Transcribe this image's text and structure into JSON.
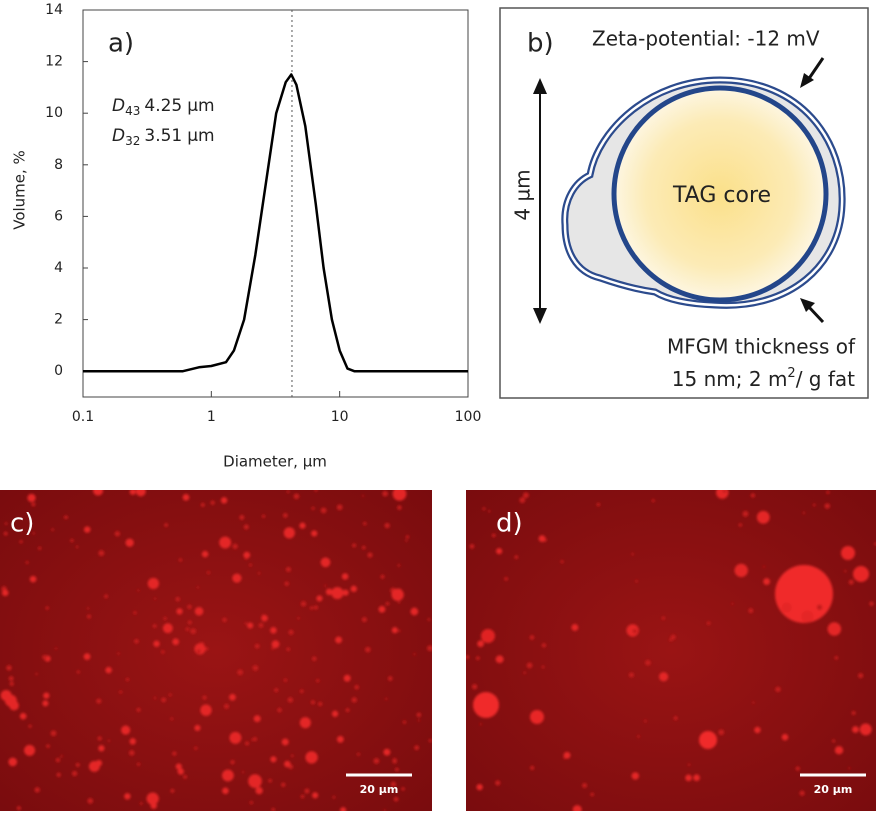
{
  "chart_data": {
    "type": "line",
    "panel_label": "a)",
    "x_label": "Diameter, µm",
    "y_label": "Volume, %",
    "x": [
      0.1,
      0.6,
      0.8,
      1,
      1.3,
      1.5,
      1.8,
      2.2,
      2.7,
      3.2,
      3.8,
      4.2,
      4.6,
      5.4,
      6.5,
      7.5,
      8.7,
      10,
      11.5,
      13,
      100
    ],
    "values": [
      0,
      0,
      0.15,
      0.2,
      0.35,
      0.8,
      2,
      4.5,
      7.5,
      10,
      11.2,
      11.5,
      11.1,
      9.5,
      6.5,
      4,
      2,
      0.8,
      0.1,
      0,
      0
    ],
    "color": "#000000",
    "xscale": "log",
    "xlim": [
      0.1,
      100
    ],
    "xticks": [
      0.1,
      1,
      10,
      100
    ],
    "ylim": [
      -1,
      14
    ],
    "yticks": [
      0,
      2,
      4,
      6,
      8,
      10,
      12,
      14
    ],
    "annotations": [
      {
        "symbol": "D",
        "subscript": "43",
        "value": 4.25,
        "unit": "µm"
      },
      {
        "symbol": "D",
        "subscript": "32",
        "value": 3.51,
        "unit": "µm"
      }
    ]
  },
  "diagram": {
    "panel_label": "b)",
    "zeta": "Zeta-potential: -12 mV",
    "size": "4 µm",
    "core": "TAG core",
    "mfgm_line1": "MFGM thickness of",
    "mfgm_line2": "15 nm; 2 m",
    "mfgm_sup": "2",
    "mfgm_tail": "/ g fat"
  },
  "micrographs": [
    {
      "panel_label": "c)",
      "scale_bar": "20 µm"
    },
    {
      "panel_label": "d)",
      "scale_bar": "20 µm"
    }
  ]
}
